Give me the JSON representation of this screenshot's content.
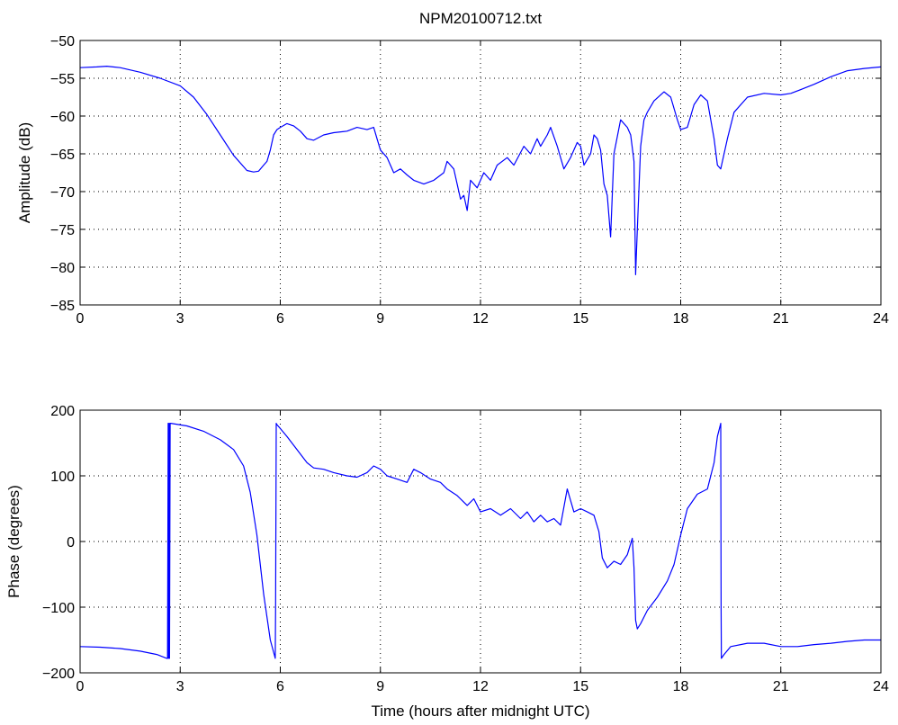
{
  "figure": {
    "title": "NPM20100712.txt"
  },
  "chart_data": [
    {
      "type": "line",
      "title": "NPM20100712.txt",
      "xlabel": "",
      "ylabel": "Amplitude (dB)",
      "xlim": [
        0,
        24
      ],
      "ylim": [
        -85,
        -50
      ],
      "xticks": [
        0,
        3,
        6,
        9,
        12,
        15,
        18,
        21,
        24
      ],
      "yticks": [
        -85,
        -80,
        -75,
        -70,
        -65,
        -60,
        -55,
        -50
      ],
      "xtick_labels": [
        "0",
        "3",
        "6",
        "9",
        "12",
        "15",
        "18",
        "21",
        "24"
      ],
      "ytick_labels": [
        "−85",
        "−80",
        "−75",
        "−70",
        "−65",
        "−60",
        "−55",
        "−50"
      ],
      "grid": true,
      "line_color": "#0000ff",
      "series": [
        {
          "x": [
            0,
            0.5,
            0.8,
            1.2,
            1.8,
            2.4,
            3.0,
            3.4,
            3.8,
            4.2,
            4.6,
            5.0,
            5.2,
            5.35,
            5.5,
            5.6,
            5.7,
            5.8,
            5.9,
            6.0,
            6.2,
            6.4,
            6.6,
            6.8,
            7.0,
            7.3,
            7.6,
            8.0,
            8.3,
            8.6,
            8.8,
            8.9,
            9.0,
            9.2,
            9.4,
            9.6,
            9.8,
            10.0,
            10.3,
            10.6,
            10.9,
            11.0,
            11.2,
            11.4,
            11.5,
            11.6,
            11.7,
            11.9,
            12.1,
            12.3,
            12.5,
            12.8,
            13.0,
            13.3,
            13.5,
            13.7,
            13.8,
            14.0,
            14.1,
            14.3,
            14.5,
            14.7,
            14.9,
            15.0,
            15.1,
            15.3,
            15.4,
            15.5,
            15.6,
            15.7,
            15.8,
            15.9,
            16.0,
            16.2,
            16.4,
            16.5,
            16.6,
            16.65,
            16.7,
            16.8,
            16.9,
            17.0,
            17.2,
            17.5,
            17.7,
            17.9,
            18.0,
            18.2,
            18.4,
            18.6,
            18.8,
            19.0,
            19.1,
            19.2,
            19.4,
            19.6,
            20.0,
            20.5,
            21.0,
            21.3,
            21.6,
            22.0,
            22.5,
            23.0,
            23.5,
            24.0
          ],
          "y": [
            -53.6,
            -53.5,
            -53.4,
            -53.6,
            -54.2,
            -55.0,
            -56.0,
            -57.5,
            -59.8,
            -62.5,
            -65.2,
            -67.2,
            -67.4,
            -67.3,
            -66.5,
            -66.0,
            -64.5,
            -62.5,
            -61.8,
            -61.5,
            -61.0,
            -61.3,
            -62.0,
            -63.0,
            -63.2,
            -62.5,
            -62.2,
            -62.0,
            -61.5,
            -61.8,
            -61.5,
            -63.0,
            -64.5,
            -65.5,
            -67.5,
            -67.0,
            -67.8,
            -68.5,
            -69.0,
            -68.5,
            -67.5,
            -66.0,
            -67.0,
            -71.0,
            -70.5,
            -72.5,
            -68.5,
            -69.5,
            -67.5,
            -68.5,
            -66.5,
            -65.5,
            -66.5,
            -64.0,
            -65.0,
            -63.0,
            -64.0,
            -62.5,
            -61.5,
            -64.0,
            -67.0,
            -65.5,
            -63.5,
            -64.0,
            -66.5,
            -65.0,
            -62.5,
            -63.0,
            -64.5,
            -69.0,
            -70.5,
            -76.0,
            -65.0,
            -60.5,
            -61.5,
            -62.5,
            -66.0,
            -81.0,
            -75.0,
            -64.0,
            -60.5,
            -59.5,
            -58.0,
            -56.8,
            -57.5,
            -60.5,
            -61.8,
            -61.5,
            -58.5,
            -57.2,
            -58.0,
            -63.0,
            -66.5,
            -67.0,
            -63.0,
            -59.5,
            -57.5,
            -57.0,
            -57.2,
            -57.0,
            -56.5,
            -55.8,
            -54.8,
            -54.0,
            -53.7,
            -53.5
          ]
        }
      ]
    },
    {
      "type": "line",
      "title": "",
      "xlabel": "Time (hours after midnight UTC)",
      "ylabel": "Phase (degrees)",
      "xlim": [
        0,
        24
      ],
      "ylim": [
        -200,
        200
      ],
      "xticks": [
        0,
        3,
        6,
        9,
        12,
        15,
        18,
        21,
        24
      ],
      "yticks": [
        -200,
        -100,
        0,
        100,
        200
      ],
      "xtick_labels": [
        "0",
        "3",
        "6",
        "9",
        "12",
        "15",
        "18",
        "21",
        "24"
      ],
      "ytick_labels": [
        "−200",
        "−100",
        "0",
        "100",
        "200"
      ],
      "grid": true,
      "line_color": "#0000ff",
      "series": [
        {
          "x": [
            0,
            0.6,
            1.2,
            1.8,
            2.3,
            2.6,
            2.62,
            2.64,
            2.65,
            2.67,
            2.68,
            2.7,
            2.72,
            3.2,
            3.7,
            4.2,
            4.6,
            4.9,
            5.1,
            5.3,
            5.5,
            5.7,
            5.85,
            5.86,
            5.88,
            5.9,
            6.0,
            6.2,
            6.5,
            6.8,
            7.0,
            7.3,
            7.6,
            8.0,
            8.3,
            8.6,
            8.8,
            9.0,
            9.2,
            9.5,
            9.8,
            10.0,
            10.2,
            10.5,
            10.8,
            11.0,
            11.3,
            11.6,
            11.8,
            12.0,
            12.3,
            12.6,
            12.9,
            13.2,
            13.4,
            13.6,
            13.8,
            14.0,
            14.2,
            14.4,
            14.6,
            14.8,
            15.0,
            15.2,
            15.4,
            15.55,
            15.65,
            15.8,
            16.0,
            16.2,
            16.4,
            16.55,
            16.6,
            16.65,
            16.7,
            16.8,
            17.0,
            17.3,
            17.6,
            17.8,
            18.0,
            18.2,
            18.5,
            18.8,
            19.0,
            19.1,
            19.2,
            19.21,
            19.22,
            19.3,
            19.5,
            20.0,
            20.5,
            21.0,
            21.5,
            22.0,
            22.5,
            23.0,
            23.5,
            24.0
          ],
          "y": [
            -160,
            -161,
            -163,
            -167,
            -172,
            -178,
            -178,
            180,
            -178,
            180,
            -178,
            180,
            180,
            176,
            168,
            155,
            140,
            115,
            75,
            10,
            -80,
            -150,
            -178,
            -100,
            180,
            178,
            172,
            160,
            140,
            120,
            112,
            110,
            105,
            100,
            98,
            105,
            115,
            110,
            100,
            95,
            90,
            110,
            105,
            95,
            90,
            80,
            70,
            55,
            65,
            45,
            50,
            40,
            50,
            35,
            45,
            30,
            40,
            30,
            35,
            25,
            80,
            45,
            50,
            45,
            40,
            15,
            -25,
            -40,
            -30,
            -35,
            -20,
            5,
            -40,
            -120,
            -133,
            -125,
            -105,
            -85,
            -60,
            -35,
            10,
            50,
            72,
            80,
            120,
            160,
            180,
            -100,
            -178,
            -172,
            -160,
            -155,
            -155,
            -160,
            -160,
            -157,
            -155,
            -152,
            -150,
            -150
          ]
        }
      ]
    }
  ]
}
